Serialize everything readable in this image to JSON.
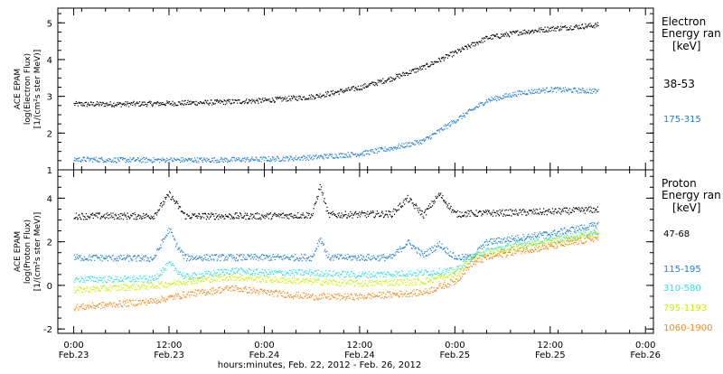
{
  "chart_data": [
    {
      "type": "scatter",
      "panel": "electron",
      "ylabel_lines": [
        "ACE EPAM",
        "log(Electron Flux)",
        "[1/(cm²s ster MeV)]"
      ],
      "ylim": [
        1,
        5.4
      ],
      "yticks": [
        1,
        2,
        3,
        4,
        5
      ],
      "legend_title": [
        "Electron",
        "Energy ran",
        "[keV]"
      ],
      "series": [
        {
          "name": "38-53",
          "color": "#000000",
          "points": [
            [
              0,
              2.8
            ],
            [
              6,
              2.8
            ],
            [
              12,
              2.82
            ],
            [
              18,
              2.85
            ],
            [
              24,
              2.9
            ],
            [
              30,
              3.0
            ],
            [
              36,
              3.25
            ],
            [
              40,
              3.5
            ],
            [
              44,
              3.8
            ],
            [
              48,
              4.2
            ],
            [
              52,
              4.6
            ],
            [
              56,
              4.75
            ],
            [
              60,
              4.85
            ],
            [
              66,
              4.95
            ]
          ]
        },
        {
          "name": "175-315",
          "color": "#1e7fd7",
          "points": [
            [
              0,
              1.3
            ],
            [
              6,
              1.28
            ],
            [
              12,
              1.28
            ],
            [
              18,
              1.28
            ],
            [
              24,
              1.3
            ],
            [
              30,
              1.35
            ],
            [
              36,
              1.45
            ],
            [
              40,
              1.6
            ],
            [
              44,
              1.8
            ],
            [
              48,
              2.35
            ],
            [
              52,
              2.9
            ],
            [
              56,
              3.1
            ],
            [
              60,
              3.2
            ],
            [
              66,
              3.15
            ]
          ]
        }
      ]
    },
    {
      "type": "scatter",
      "panel": "proton",
      "ylabel_lines": [
        "ACE EPAM",
        "log(Proton Flux)",
        "[1/(cm²s ster MeV)]"
      ],
      "ylim": [
        -2.2,
        5.3
      ],
      "yticks": [
        -2,
        0,
        2,
        4
      ],
      "legend_title": [
        "Proton",
        "Energy ran",
        "[keV]"
      ],
      "series": [
        {
          "name": "47-68",
          "color": "#000000",
          "points": [
            [
              0,
              3.2
            ],
            [
              10,
              3.2
            ],
            [
              12,
              4.2
            ],
            [
              14,
              3.2
            ],
            [
              24,
              3.2
            ],
            [
              30,
              3.25
            ],
            [
              31,
              4.6
            ],
            [
              32,
              3.25
            ],
            [
              40,
              3.3
            ],
            [
              42,
              4.0
            ],
            [
              44,
              3.25
            ],
            [
              46,
              4.2
            ],
            [
              48,
              3.3
            ],
            [
              60,
              3.4
            ],
            [
              66,
              3.5
            ]
          ]
        },
        {
          "name": "115-195",
          "color": "#1e7fd7",
          "points": [
            [
              0,
              1.3
            ],
            [
              10,
              1.25
            ],
            [
              12,
              2.6
            ],
            [
              13,
              1.8
            ],
            [
              14,
              1.3
            ],
            [
              24,
              1.3
            ],
            [
              30,
              1.3
            ],
            [
              31,
              2.2
            ],
            [
              32,
              1.3
            ],
            [
              40,
              1.3
            ],
            [
              42,
              2.0
            ],
            [
              44,
              1.4
            ],
            [
              46,
              1.9
            ],
            [
              48,
              1.3
            ],
            [
              50,
              1.3
            ],
            [
              52,
              2.0
            ],
            [
              56,
              2.2
            ],
            [
              60,
              2.4
            ],
            [
              66,
              2.8
            ]
          ]
        },
        {
          "name": "310-580",
          "color": "#33e0e0",
          "points": [
            [
              0,
              0.3
            ],
            [
              10,
              0.3
            ],
            [
              12,
              1.0
            ],
            [
              14,
              0.4
            ],
            [
              20,
              0.7
            ],
            [
              24,
              0.6
            ],
            [
              30,
              0.6
            ],
            [
              36,
              0.5
            ],
            [
              44,
              0.6
            ],
            [
              48,
              0.7
            ],
            [
              50,
              1.3
            ],
            [
              52,
              1.6
            ],
            [
              56,
              1.9
            ],
            [
              60,
              2.1
            ],
            [
              66,
              2.5
            ]
          ]
        },
        {
          "name": "795-1193",
          "color": "#c8f000",
          "points": [
            [
              0,
              -0.2
            ],
            [
              10,
              0.0
            ],
            [
              14,
              0.2
            ],
            [
              20,
              0.4
            ],
            [
              24,
              0.3
            ],
            [
              30,
              0.2
            ],
            [
              36,
              0.1
            ],
            [
              44,
              0.2
            ],
            [
              48,
              0.5
            ],
            [
              50,
              1.2
            ],
            [
              52,
              1.5
            ],
            [
              56,
              1.8
            ],
            [
              60,
              2.0
            ],
            [
              66,
              2.4
            ]
          ]
        },
        {
          "name": "1060-1900",
          "color": "#f08a1c",
          "points": [
            [
              0,
              -1.0
            ],
            [
              10,
              -0.7
            ],
            [
              14,
              -0.4
            ],
            [
              20,
              -0.1
            ],
            [
              24,
              -0.3
            ],
            [
              30,
              -0.5
            ],
            [
              36,
              -0.5
            ],
            [
              44,
              -0.3
            ],
            [
              48,
              0.2
            ],
            [
              50,
              1.0
            ],
            [
              52,
              1.3
            ],
            [
              56,
              1.6
            ],
            [
              60,
              1.8
            ],
            [
              66,
              2.2
            ]
          ]
        }
      ]
    }
  ],
  "x_axis": {
    "tick_times": [
      "0:00",
      "12:00",
      "0:00",
      "12:00",
      "0:00",
      "12:00",
      "0:00"
    ],
    "tick_dates": [
      "Feb.23",
      "Feb.23",
      "Feb.24",
      "Feb.24",
      "Feb.25",
      "Feb.25",
      "Feb.26"
    ],
    "tick_hours": [
      0,
      12,
      24,
      36,
      48,
      60,
      72
    ],
    "xlim": [
      -2,
      73
    ],
    "label": "hours:minutes, Feb. 22, 2012 - Feb. 26, 2012"
  }
}
